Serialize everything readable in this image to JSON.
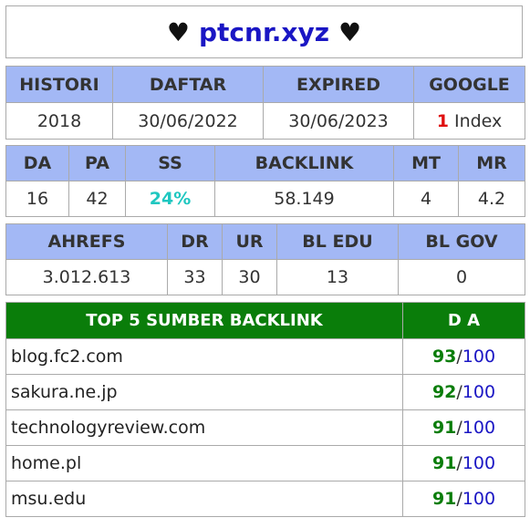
{
  "title": {
    "heart_left": "♥",
    "site": "ptcnr.xyz",
    "heart_right": "♥"
  },
  "table1": {
    "headers": [
      "HISTORI",
      "DAFTAR",
      "EXPIRED",
      "GOOGLE"
    ],
    "values": {
      "histori": "2018",
      "daftar": "30/06/2022",
      "expired": "30/06/2023",
      "google_count": "1",
      "google_label": " Index"
    }
  },
  "table2": {
    "headers": [
      "DA",
      "PA",
      "SS",
      "BACKLINK",
      "MT",
      "MR"
    ],
    "values": [
      "16",
      "42",
      "24%",
      "58.149",
      "4",
      "4.2"
    ]
  },
  "table3": {
    "headers": [
      "AHREFS",
      "DR",
      "UR",
      "BL EDU",
      "BL GOV"
    ],
    "values": [
      "3.012.613",
      "33",
      "30",
      "13",
      "0"
    ]
  },
  "table4": {
    "headers": [
      "TOP 5 SUMBER BACKLINK",
      "D A"
    ],
    "rows": [
      {
        "domain": "blog.fc2.com",
        "da": "93",
        "max": "100"
      },
      {
        "domain": "sakura.ne.jp",
        "da": "92",
        "max": "100"
      },
      {
        "domain": "technologyreview.com",
        "da": "91",
        "max": "100"
      },
      {
        "domain": "home.pl",
        "da": "91",
        "max": "100"
      },
      {
        "domain": "msu.edu",
        "da": "91",
        "max": "100"
      }
    ],
    "separator": "/"
  },
  "colors": {
    "header_bg": "#a3b8f5",
    "top5_header_bg": "#0a7d0a",
    "site_color": "#1a16c4",
    "google_count_color": "#e01010",
    "ss_color": "#1fc7c0",
    "da_color": "#0a7d0a"
  }
}
